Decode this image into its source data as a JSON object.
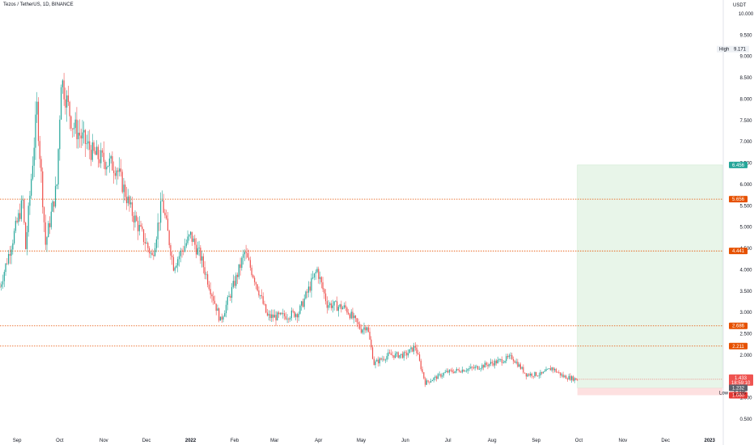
{
  "header": {
    "title": "Tezos / TetherUS, 1D, BINANCE"
  },
  "axis": {
    "currency": "USDT"
  },
  "colors": {
    "up": "#26a69a",
    "down": "#ef5350",
    "level": "#e65100",
    "target_zone": "#e8f5e9",
    "stop_zone": "#fde0e0",
    "last_price": "#ef5350"
  },
  "chart_data": {
    "type": "candlestick",
    "title": "Tezos / TetherUS, 1D, BINANCE",
    "ylabel": "USDT",
    "y_range": [
      0.3,
      10.2
    ],
    "y_ticks": [
      "10.000",
      "9.500",
      "9.000",
      "8.500",
      "8.000",
      "7.500",
      "7.000",
      "6.500",
      "6.000",
      "5.500",
      "5.000",
      "4.500",
      "4.000",
      "3.500",
      "3.000",
      "2.500",
      "2.000",
      "1.500",
      "1.000",
      "0.500"
    ],
    "x_ticks": [
      "Sep",
      "Oct",
      "Nov",
      "Dec",
      "2022",
      "Feb",
      "Mar",
      "Apr",
      "May",
      "Jun",
      "Jul",
      "Aug",
      "Sep",
      "Oct",
      "Nov",
      "Dec",
      "2023"
    ],
    "x_range": [
      "2021-08-20",
      "2023-01-10"
    ],
    "key_prices": [
      {
        "date": "2021-08-20",
        "price": 3.6
      },
      {
        "date": "2021-09-05",
        "price": 5.6
      },
      {
        "date": "2021-09-07",
        "price": 4.5
      },
      {
        "date": "2021-09-15",
        "price": 7.8
      },
      {
        "date": "2021-09-21",
        "price": 4.6
      },
      {
        "date": "2021-09-29",
        "price": 6.0
      },
      {
        "date": "2021-10-02",
        "price": 8.5
      },
      {
        "date": "2021-10-10",
        "price": 7.4
      },
      {
        "date": "2021-10-25",
        "price": 6.7
      },
      {
        "date": "2021-11-10",
        "price": 6.4
      },
      {
        "date": "2021-11-20",
        "price": 5.4
      },
      {
        "date": "2021-12-05",
        "price": 4.3
      },
      {
        "date": "2021-12-12",
        "price": 5.6
      },
      {
        "date": "2021-12-20",
        "price": 4.1
      },
      {
        "date": "2022-01-01",
        "price": 4.8
      },
      {
        "date": "2022-01-08",
        "price": 4.3
      },
      {
        "date": "2022-01-22",
        "price": 2.8
      },
      {
        "date": "2022-02-02",
        "price": 3.8
      },
      {
        "date": "2022-02-08",
        "price": 4.4
      },
      {
        "date": "2022-02-15",
        "price": 3.8
      },
      {
        "date": "2022-02-24",
        "price": 2.9
      },
      {
        "date": "2022-03-06",
        "price": 2.9
      },
      {
        "date": "2022-03-18",
        "price": 3.0
      },
      {
        "date": "2022-03-31",
        "price": 4.0
      },
      {
        "date": "2022-04-07",
        "price": 3.2
      },
      {
        "date": "2022-04-20",
        "price": 3.1
      },
      {
        "date": "2022-05-01",
        "price": 2.6
      },
      {
        "date": "2022-05-05",
        "price": 2.7
      },
      {
        "date": "2022-05-10",
        "price": 1.8
      },
      {
        "date": "2022-05-20",
        "price": 2.0
      },
      {
        "date": "2022-06-01",
        "price": 2.0
      },
      {
        "date": "2022-06-08",
        "price": 2.2
      },
      {
        "date": "2022-06-15",
        "price": 1.35
      },
      {
        "date": "2022-06-30",
        "price": 1.6
      },
      {
        "date": "2022-07-20",
        "price": 1.7
      },
      {
        "date": "2022-08-05",
        "price": 1.85
      },
      {
        "date": "2022-08-15",
        "price": 1.95
      },
      {
        "date": "2022-08-25",
        "price": 1.55
      },
      {
        "date": "2022-09-05",
        "price": 1.55
      },
      {
        "date": "2022-09-12",
        "price": 1.7
      },
      {
        "date": "2022-09-20",
        "price": 1.5
      },
      {
        "date": "2022-09-30",
        "price": 1.43
      }
    ],
    "horizontal_levels": [
      {
        "label": "5.656",
        "value": 5.656
      },
      {
        "label": "4.441",
        "value": 4.441
      },
      {
        "label": "2.686",
        "value": 2.686
      },
      {
        "label": "2.211",
        "value": 2.211
      }
    ],
    "target_zone": {
      "top_label": "6.456",
      "top": 6.456,
      "bottom": 1.232,
      "start": "2022-09-30",
      "end": "2023-01-10"
    },
    "stop_zone": {
      "top": 1.232,
      "bottom": 1.06,
      "top_label": "1.232",
      "bottom_label": "1.060"
    },
    "last_price": {
      "value_label": "1.433",
      "countdown": "18:59:10",
      "value": 1.433
    },
    "high": {
      "label": "High",
      "value_label": "9.171"
    },
    "low": {
      "label": "Low",
      "value_label": "1.195"
    }
  }
}
